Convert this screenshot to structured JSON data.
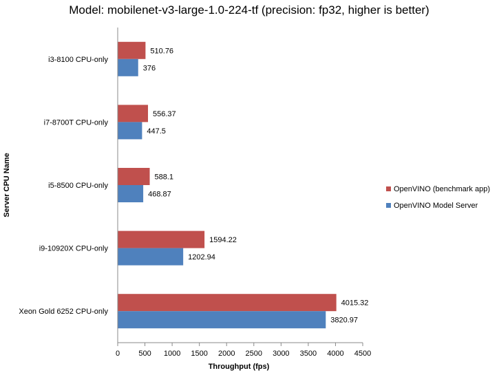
{
  "chart_data": {
    "type": "bar",
    "orientation": "horizontal",
    "title": "Model: mobilenet-v3-large-1.0-224-tf (precision: fp32, higher is better)",
    "xlabel": "Throughput (fps)",
    "ylabel": "Server CPU Name",
    "xlim": [
      0,
      4500
    ],
    "x_ticks": [
      "0",
      "500",
      "1000",
      "1500",
      "2000",
      "2500",
      "3000",
      "3500",
      "4000",
      "4500"
    ],
    "grid": false,
    "legend_position": "right",
    "categories": [
      "i3-8100 CPU-only",
      "i7-8700T CPU-only",
      "i5-8500 CPU-only",
      "i9-10920X CPU-only",
      "Xeon Gold 6252 CPU-only"
    ],
    "series": [
      {
        "name": "OpenVINO (benchmark app)",
        "color": "#c0504d",
        "values": [
          510.76,
          556.37,
          588.1,
          1594.22,
          4015.32
        ],
        "labels": [
          "510.76",
          "556.37",
          "588.1",
          "1594.22",
          "4015.32"
        ]
      },
      {
        "name": "OpenVINO Model Server",
        "color": "#4f81bd",
        "values": [
          376,
          447.5,
          468.87,
          1202.94,
          3820.97
        ],
        "labels": [
          "376",
          "447.5",
          "468.87",
          "1202.94",
          "3820.97"
        ]
      }
    ]
  }
}
